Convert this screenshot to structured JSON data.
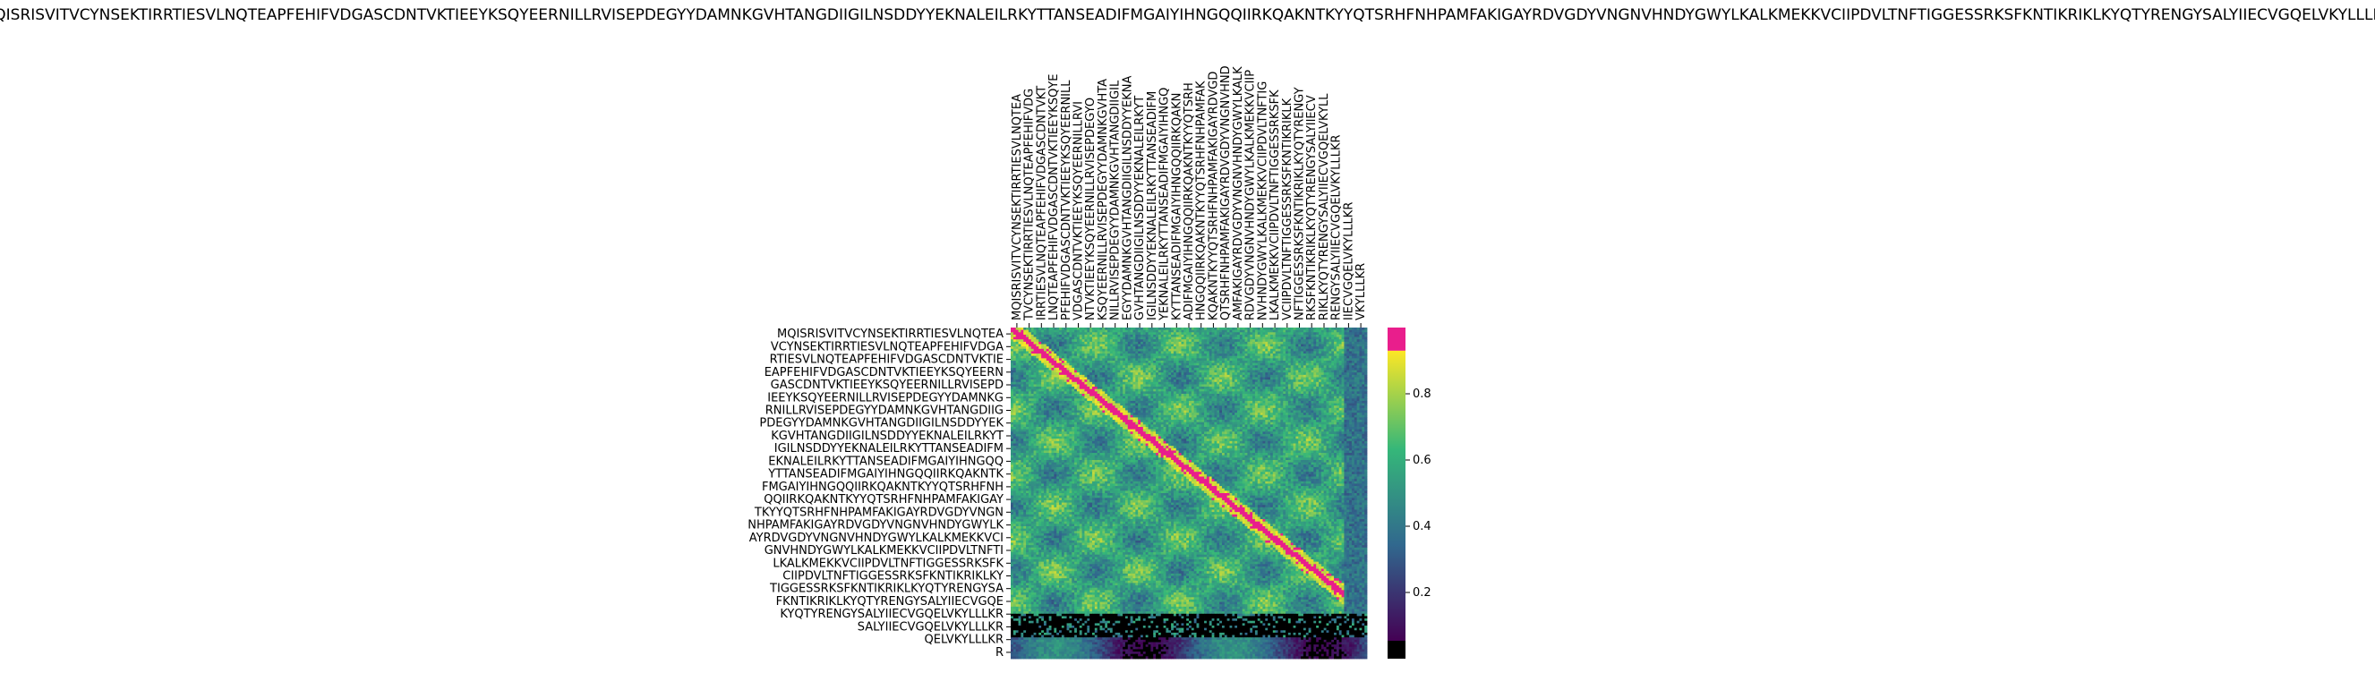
{
  "chart_data": {
    "type": "heatmap",
    "title": "MQISRISVITVCYNSEKTIRRTIESVLNQTEAPFEHIFVDGASCDNTVKTIEEYKSQYEERNILLRVISEPDEGYYDAMNKGVHTANGDIIGILNSDDYYEKNALEILRKYTTANSEADIFMGAIYIHNGQQIIRKQAKNTKYYQTSRHFNHPAMFAKIGAYRDVGDYVNGNVHNDYGWYLKALKMEKKVCIIPDVLTNFTIGGESSRKSFKNTIKRIKLKYQTYRENGYSALYIIECVGQELVKYLLLKR",
    "xlabel": "",
    "ylabel": "",
    "y_labels": [
      "MQISRISVITVCYNSEKTIRRTIESVLNQTEA",
      "VCYNSEKTIRRTIESVLNQTEAPFEHIFVDGA",
      "RTIESVLNQTEAPFEHIFVDGASCDNTVKTIE",
      "EAPFEHIFVDGASCDNTVKTIEEYKSQYEERN",
      "GASCDNTVKTIEEYKSQYEERNILLRVISEPD",
      "IEEYKSQYEERNILLRVISEPDEGYYDAMNKG",
      "RNILLRVISEPDEGYYDAMNKGVHTANGDIIG",
      "PDEGYYDAMNKGVHTANGDIIGILNSDDYYEK",
      "KGVHTANGDIIGILNSDDYYEKNALEILRKYT",
      "IGILNSDDYYEKNALEILRKYTTANSEADIFM",
      "EKNALEILRKYTTANSEADIFMGAIYIHNGQQ",
      "YTTANSEADIFMGAIYIHNGQQIIRKQAKNTK",
      "FMGAIYIHNGQQIIRKQAKNTKYYQTSRHFNH",
      "QQIIRKQAKNTKYYQTSRHFNHPAMFAKIGAY",
      "TKYYQTSRHFNHPAMFAKIGAYRDVGDYVNGN",
      "NHPAMFAKIGAYRDVGDYVNGNVHNDYGWYLK",
      "AYRDVGDYVNGNVHNDYGWYLKALKMEKKVCI",
      "GNVHNDYGWYLKALKMEKKVCIIPDVLTNFTI",
      "LKALKMEKKVCIIPDVLTNFTIGGESSRKSFK",
      "CIIPDVLTNFTIGGESSRKSFKNTIKRIKLKY",
      "TIGGESSRKSFKNTIKRIKLKYQTYRENGYSA",
      "FKNTIKRIKLKYQTYRENGYSALYIIECVGQE",
      "KYQTYRENGYSALYIIECVGQELVKYLLLKR",
      "SALYIIECVGQELVKYLLLKR",
      "QELVKYLLLKR",
      "R"
    ],
    "x_labels": [
      "MQISRISVITVCYNSEKTIRRTIESVLNQTEA",
      "TVCYNSEKTIRRTIESVLNQTEAPFEHIFVDG",
      "IRRTIESVLNQTEAPFEHIFVDGASCDNTVKT",
      "LNQTEAPFEHIFVDGASCDNTVKTIEEYKSQYE",
      "PFEHIFVDGASCDNTVKTIEEYKSQYEERNILL",
      "VDGASCDNTVKTIEEYKSQYEERNILLRVI",
      "NTVKTIEEYKSQYEERNILLRVISEPDEGYO",
      "KSQYEERNILLRVISEPDEGYYDAMNKGVHTA",
      "NILLRVISEPDEGYYDAMNKGVHTANGDIIGIL",
      "EGYYDAMNKGVHTANGDIIGILNSDDYYEKNA",
      "GVHTANGDIIGILNSDDYYEKNALEILRKYT",
      "IGILNSDDYYEKNALEILRKYTTANSEADIFM",
      "YEKNALEILRKYTTANSEADIFMGAIYIHNGQ",
      "KYTTANSEADIFMGAIYIHNGQQIIRKQAKN",
      "ADIFMGAIYIHNGQQIIRKQAKNTKYYQTSRH",
      "HNGQQIIRKQAKNTKYYQTSRHFNHPAMFAK",
      "KQAKNTKYYQTSRHFNHPAMFAKIGAYRDVGD",
      "QTSRHFNHPAMFAKIGAYRDVGDYVNGNVHND",
      "AMFAKIGAYRDVGDYVNGNVHNDYGWYLKALK",
      "RDVGDYVNGNVHNDYGWYLKALKMEKKVCIIP",
      "NVHNDYGWYLKALKMEKKVCIIPDVLTNFTIG",
      "LKALKMEKKVCIIPDVLTNFTIGGESSRKSFK",
      "VCIIPDVLTNFTIGGESSRKSFKNTIKRIKLK",
      "NFTIGGESSRKSFKNTIKRIKLKYQTYRENGY",
      "RKSFKNTIKRIKLKYQTYRENGYSALYIIECV",
      "RIKLKYQTYRENGYSALYIIECVGQELVKYLL",
      "RENGYSALYIIECVGQELVKYLLLKR",
      "IIECVGQELVKYLLLKR",
      "VKYLLLKR"
    ],
    "value_range": [
      0,
      1
    ],
    "highlight_threshold": 0.93,
    "colorscale": [
      "#440154",
      "#31688e",
      "#35b779",
      "#fde725"
    ],
    "highlight_color": "#e91e8c",
    "masked_color": "#000000",
    "colorbar": {
      "ticks": [
        0.2,
        0.4,
        0.6,
        0.8
      ],
      "tick_labels": [
        "0.2",
        "0.4",
        "0.6",
        "0.8"
      ]
    },
    "grid": false,
    "legend": "right"
  }
}
